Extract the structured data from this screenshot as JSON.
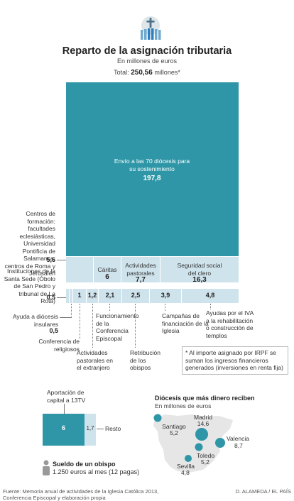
{
  "header": {
    "title": "Reparto de la asignación tributaria",
    "subtitle": "En millones de euros",
    "total_prefix": "Total:",
    "total_value": "250,56",
    "total_suffix": "millones*"
  },
  "icon": "church-cross-icon",
  "colors": {
    "main": "#2e96a7",
    "light": "#cfe3ec",
    "mid": "#a9ccd9",
    "text": "#333333"
  },
  "chart_data": [
    {
      "type": "treemap",
      "title": "Reparto de la asignación tributaria",
      "unit": "En millones de euros",
      "total": 250.56,
      "items": [
        {
          "label": "Envío a las 70 diócesis para su sostenimiento",
          "value": 197.8,
          "value_text": "197,8"
        },
        {
          "label": "Centros de formación: facultades eclesiásticas, Universidad Pontificia de Salamanca, centros de Roma y Jerusalén",
          "value": 5.6,
          "value_text": "5,6"
        },
        {
          "label": "Cáritas",
          "value": 6,
          "value_text": "6"
        },
        {
          "label": "Actividades pastorales",
          "value": 7.7,
          "value_text": "7,7"
        },
        {
          "label": "Seguridad social del clero",
          "value": 16.3,
          "value_text": "16,3"
        },
        {
          "label": "Instituciones de la Santa Sede (Óbolo de San Pedro y tribunal de La Rota)",
          "value": 0.5,
          "value_text": "0,5"
        },
        {
          "label": "Ayuda a diócesis insulares",
          "value": 0.5,
          "value_text": "0,5"
        },
        {
          "label": "Conferencia de religiosos",
          "value": 1,
          "value_text": "1"
        },
        {
          "label": "Actividades pastorales en el extranjero",
          "value": 1.2,
          "value_text": "1,2"
        },
        {
          "label": "Funcionamiento de la Conferencia Episcopal",
          "value": 2.1,
          "value_text": "2,1"
        },
        {
          "label": "Retribución de los obispos",
          "value": 2.5,
          "value_text": "2,5"
        },
        {
          "label": "Campañas de financiación de la Iglesia",
          "value": 3.9,
          "value_text": "3,9"
        },
        {
          "label": "Ayudas por el IVA a la rehabilitación o construcción de templos",
          "value": 4.8,
          "value_text": "4,8"
        }
      ]
    },
    {
      "type": "bar",
      "categories": [
        "Aportación de capital a 13TV",
        "Resto"
      ],
      "values": [
        6,
        1.7
      ],
      "value_text": [
        "6",
        "1,7"
      ]
    },
    {
      "type": "map",
      "title": "Diócesis que más dinero reciben",
      "subtitle": "En millones de euros",
      "points": [
        {
          "name": "Madrid",
          "value": 14.6,
          "value_text": "14,6"
        },
        {
          "name": "Valencia",
          "value": 8.7,
          "value_text": "8,7"
        },
        {
          "name": "Santiago",
          "value": 5.2,
          "value_text": "5,2"
        },
        {
          "name": "Toledo",
          "value": 5.2,
          "value_text": "5,2"
        },
        {
          "name": "Sevilla",
          "value": 4.8,
          "value_text": "4,8"
        }
      ]
    }
  ],
  "note": "* Al importe asignado por IRPF se suman los ingresos financieros generados (inversiones en renta fija)",
  "sueldo": {
    "title": "Sueldo de un obispo",
    "text": "1.250 euros al mes (12 pagas)",
    "icon": "person-icon"
  },
  "footer": {
    "source_line1": "Fuente: Memoria anual de actividades de la Iglesia Católica 2013,",
    "source_line2": "Conferencia Episcopal y elaboración propia",
    "credit": "D. ALAMEDA / EL PAÍS"
  }
}
